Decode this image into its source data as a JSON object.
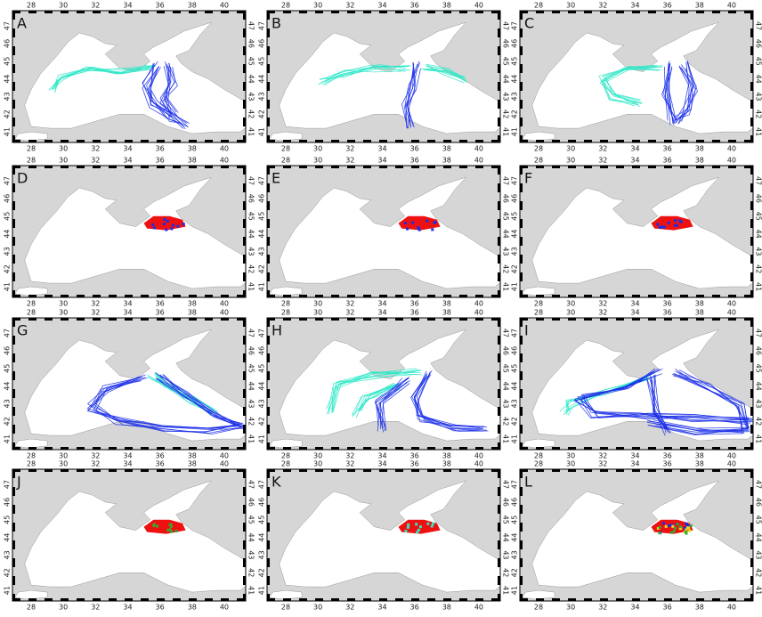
{
  "axes": {
    "lon_ticks": [
      28,
      30,
      32,
      34,
      36,
      38,
      40
    ],
    "lat_ticks": [
      41,
      42,
      43,
      44,
      45,
      46,
      47
    ],
    "lon_lim": [
      26.84,
      41.33
    ],
    "lat_lim": [
      40.4,
      47.86
    ]
  },
  "panels": [
    {
      "label": "A"
    },
    {
      "label": "B"
    },
    {
      "label": "C"
    },
    {
      "label": "D"
    },
    {
      "label": "E"
    },
    {
      "label": "F"
    },
    {
      "label": "G"
    },
    {
      "label": "H"
    },
    {
      "label": "I"
    },
    {
      "label": "J"
    },
    {
      "label": "K"
    },
    {
      "label": "L"
    }
  ]
}
